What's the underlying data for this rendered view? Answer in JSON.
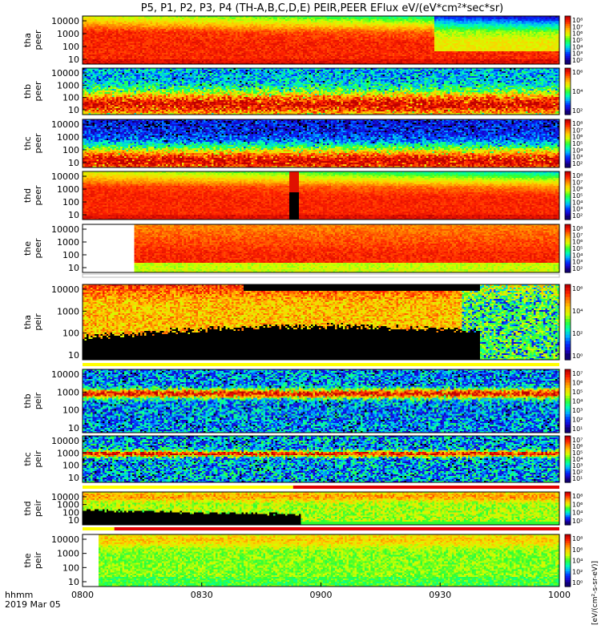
{
  "chart_data": {
    "type": "heatmap",
    "title": "P5, P1, P2, P3, P4 (TH-A,B,C,D,E) PEIR,PEER EFlux eV/(eV*cm²*sec*sr)",
    "x_axis": {
      "row_labels": [
        "hhmm",
        "2019 Mar 05"
      ],
      "ticks": [
        "0800",
        "0830",
        "0900",
        "0930",
        "1000"
      ],
      "range_minutes": [
        0,
        120
      ]
    },
    "colorbar_label": "[eV/(cm²-s-sr-eV)]",
    "colormap": [
      "#000000",
      "#1a00c8",
      "#0030ff",
      "#00b0ff",
      "#00ffb0",
      "#30ff30",
      "#d0ff00",
      "#ffd000",
      "#ff8000",
      "#ff2000",
      "#c00000"
    ],
    "panels": [
      {
        "id": "tha_peer",
        "label": [
          "tha",
          "peer"
        ],
        "yticks": [
          "10000",
          "1000",
          "100",
          "10"
        ],
        "log_energy_range": [
          0.9,
          4.3
        ],
        "colorbar_ticks": [
          "10⁸",
          "10⁷",
          "10⁶",
          "10⁵",
          "10⁴",
          "10³",
          "10²"
        ],
        "bar": null,
        "pattern": {
          "kind": "peer",
          "high": 0.92,
          "low": 0.88,
          "noise": 0.05,
          "shift_minutes": 88,
          "shift_drop": 0.25,
          "edge_glow": true
        }
      },
      {
        "id": "thb_peer",
        "label": [
          "thb",
          "peer"
        ],
        "yticks": [
          "10000",
          "1000",
          "100",
          "10"
        ],
        "log_energy_range": [
          0.9,
          4.3
        ],
        "colorbar_ticks": [
          "10⁶",
          "10⁴",
          "10²"
        ],
        "bar": null,
        "pattern": {
          "kind": "band",
          "center_log": 1.6,
          "width": 1.0,
          "peak": 0.97,
          "bg": 0.32,
          "noise": 0.15
        }
      },
      {
        "id": "thc_peer",
        "label": [
          "thc",
          "peer"
        ],
        "yticks": [
          "10000",
          "1000",
          "100",
          "10"
        ],
        "log_energy_range": [
          0.9,
          4.3
        ],
        "colorbar_ticks": [
          "10⁸",
          "10⁷",
          "10⁶",
          "10⁵",
          "10⁴",
          "10³",
          "10²"
        ],
        "bar": null,
        "pattern": {
          "kind": "band",
          "center_log": 1.3,
          "width": 1.1,
          "peak": 0.97,
          "bg": 0.16,
          "noise": 0.12
        }
      },
      {
        "id": "thd_peer",
        "label": [
          "thd",
          "peer"
        ],
        "yticks": [
          "10000",
          "1000",
          "100",
          "10"
        ],
        "log_energy_range": [
          0.9,
          4.3
        ],
        "colorbar_ticks": [
          "10⁸",
          "10⁷",
          "10⁶",
          "10⁵",
          "10⁴",
          "10³",
          "10²"
        ],
        "bar": null,
        "pattern": {
          "kind": "peer",
          "high": 0.9,
          "low": 0.88,
          "noise": 0.04,
          "shift_minutes": 999,
          "shift_drop": 0,
          "gap_minutes": [
            52,
            54
          ]
        }
      },
      {
        "id": "the_peer",
        "label": [
          "the",
          "peer"
        ],
        "yticks": [
          "10000",
          "1000",
          "100",
          "10"
        ],
        "log_energy_range": [
          0.9,
          4.3
        ],
        "colorbar_ticks": [
          "10⁸",
          "10⁷",
          "10⁶",
          "10⁵",
          "10⁴",
          "10³",
          "10²"
        ],
        "bar": {
          "segments": [
            {
              "from": 0,
              "to": 120,
              "color": "#ffffff"
            }
          ]
        },
        "pattern": {
          "kind": "peer_e",
          "noise": 0.05,
          "blank_minutes": [
            0,
            13
          ]
        }
      },
      {
        "id": "tha_peir",
        "label": [
          "tha",
          "peir"
        ],
        "yticks": [
          "10000",
          "1000",
          "100",
          "10"
        ],
        "log_energy_range": [
          0.9,
          4.3
        ],
        "colorbar_ticks": [
          "10⁶",
          "10⁴",
          "10²",
          "10⁰"
        ],
        "bar": {
          "segments": [
            {
              "from": 0,
              "to": 120,
              "color": "#ffff00"
            }
          ]
        },
        "pattern": {
          "kind": "peir_a",
          "noise": 0.12
        }
      },
      {
        "id": "thb_peir",
        "label": [
          "thb",
          "peir"
        ],
        "yticks": [
          "10000",
          "1000",
          "100",
          "10"
        ],
        "log_energy_range": [
          0.9,
          4.3
        ],
        "colorbar_ticks": [
          "10⁷",
          "10⁶",
          "10⁵",
          "10⁴",
          "10³",
          "10²",
          "10¹"
        ],
        "bar": null,
        "pattern": {
          "kind": "band",
          "center_log": 3.0,
          "width": 0.25,
          "peak": 0.97,
          "bg": 0.28,
          "noise": 0.2
        }
      },
      {
        "id": "thc_peir",
        "label": [
          "thc",
          "peir"
        ],
        "yticks": [
          "10000",
          "1000",
          "100",
          "10"
        ],
        "log_energy_range": [
          0.9,
          4.3
        ],
        "colorbar_ticks": [
          "10⁷",
          "10⁶",
          "10⁵",
          "10⁴",
          "10³",
          "10²",
          "10¹"
        ],
        "bar": {
          "segments": [
            {
              "from": 0,
              "to": 53,
              "color": "#ffff00"
            },
            {
              "from": 53,
              "to": 120,
              "color": "#e00000"
            }
          ]
        },
        "pattern": {
          "kind": "band",
          "center_log": 3.0,
          "width": 0.22,
          "peak": 0.97,
          "bg": 0.3,
          "noise": 0.22
        }
      },
      {
        "id": "thd_peir",
        "label": [
          "thd",
          "peir"
        ],
        "yticks": [
          "10000",
          "1000",
          "100",
          "10"
        ],
        "log_energy_range": [
          0.9,
          4.3
        ],
        "colorbar_ticks": [
          "10⁸",
          "10⁶",
          "10⁴",
          "10²"
        ],
        "bar": {
          "segments": [
            {
              "from": 0,
              "to": 8,
              "color": "#ffff00"
            },
            {
              "from": 8,
              "to": 120,
              "color": "#e00000"
            }
          ]
        },
        "pattern": {
          "kind": "peir_d",
          "noise": 0.1
        }
      },
      {
        "id": "the_peir",
        "label": [
          "the",
          "peir"
        ],
        "yticks": [
          "10000",
          "1000",
          "100",
          "10"
        ],
        "log_energy_range": [
          0.9,
          4.3
        ],
        "colorbar_ticks": [
          "10⁸",
          "10⁶",
          "10⁴",
          "10²",
          "10⁰"
        ],
        "bar": null,
        "pattern": {
          "kind": "peir_e",
          "noise": 0.08,
          "blank_minutes": [
            0,
            4
          ]
        }
      }
    ]
  }
}
